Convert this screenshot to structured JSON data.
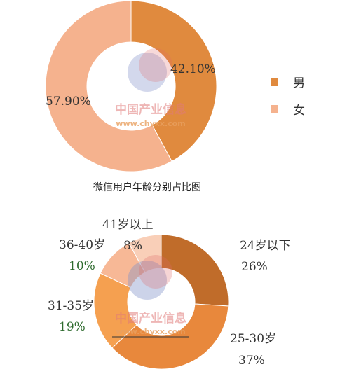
{
  "chart_data": [
    {
      "type": "pie",
      "title": "",
      "caption": "微信用户年龄分别占比图",
      "slices": [
        {
          "name": "男",
          "value": 42.1,
          "label": "42.10%",
          "color": "#e08a3e"
        },
        {
          "name": "女",
          "value": 57.9,
          "label": "57.90%",
          "color": "#f5b28e"
        }
      ],
      "legend": [
        {
          "name": "男",
          "color": "#e08a3e"
        },
        {
          "name": "女",
          "color": "#f5b28e"
        }
      ],
      "legend_position": "right"
    },
    {
      "type": "pie",
      "title": "",
      "slices": [
        {
          "name": "24岁以下",
          "value": 26,
          "label": "26%",
          "color": "#c06c2a"
        },
        {
          "name": "25-30岁",
          "value": 37,
          "label": "37%",
          "color": "#e8883c"
        },
        {
          "name": "31-35岁",
          "value": 19,
          "label": "19%",
          "color": "#f5a050"
        },
        {
          "name": "36-40岁",
          "value": 10,
          "label": "10%",
          "color": "#f7b896"
        },
        {
          "name": "41岁以上",
          "value": 8,
          "label": "8%",
          "color": "#f9cfb8"
        }
      ]
    }
  ],
  "watermark": {
    "text": "中国产业信息",
    "url": "www.chyxx.com"
  }
}
